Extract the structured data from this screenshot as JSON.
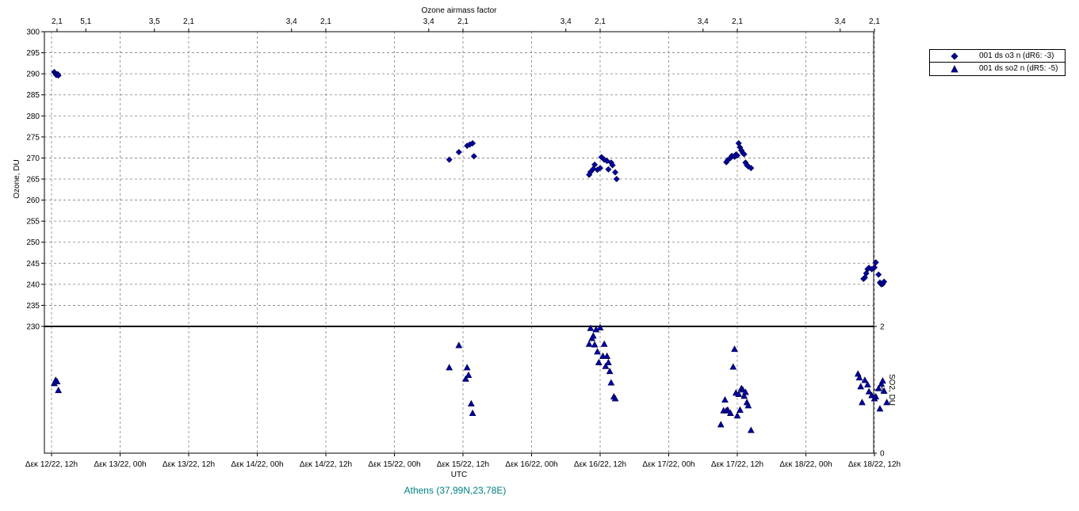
{
  "chart_data": {
    "type": "scatter",
    "top_axis_title": "Ozone airmass factor",
    "top_tick_labels": [
      {
        "x": 0.04,
        "label": "2,1"
      },
      {
        "x": 0.25,
        "label": "5,1"
      },
      {
        "x": 0.75,
        "label": "3,5"
      },
      {
        "x": 1.0,
        "label": "2,1"
      },
      {
        "x": 1.75,
        "label": "3,4"
      },
      {
        "x": 2.0,
        "label": "2,1"
      },
      {
        "x": 2.75,
        "label": "3,4"
      },
      {
        "x": 3.0,
        "label": "2,1"
      },
      {
        "x": 3.75,
        "label": "3,4"
      },
      {
        "x": 4.0,
        "label": "2,1"
      },
      {
        "x": 4.75,
        "label": "3,4"
      },
      {
        "x": 5.0,
        "label": "2,1"
      },
      {
        "x": 5.75,
        "label": "3,4"
      },
      {
        "x": 6.0,
        "label": "2,1"
      }
    ],
    "xlabel": "UTC",
    "x_tick_labels": [
      {
        "x": 0.0,
        "label": "Δεκ 12/22, 12h"
      },
      {
        "x": 0.5,
        "label": "Δεκ 13/22, 00h"
      },
      {
        "x": 1.0,
        "label": "Δεκ 13/22, 12h"
      },
      {
        "x": 1.5,
        "label": "Δεκ 14/22, 00h"
      },
      {
        "x": 2.0,
        "label": "Δεκ 14/22, 12h"
      },
      {
        "x": 2.5,
        "label": "Δεκ 15/22, 00h"
      },
      {
        "x": 3.0,
        "label": "Δεκ 15/22, 12h"
      },
      {
        "x": 3.5,
        "label": "Δεκ 16/22, 00h"
      },
      {
        "x": 4.0,
        "label": "Δεκ 16/22, 12h"
      },
      {
        "x": 4.5,
        "label": "Δεκ 17/22, 00h"
      },
      {
        "x": 5.0,
        "label": "Δεκ 17/22, 12h"
      },
      {
        "x": 5.5,
        "label": "Δεκ 18/22, 00h"
      },
      {
        "x": 6.0,
        "label": "Δεκ 18/22, 12h"
      }
    ],
    "footer": "Athens (37,99N,23,78E)",
    "grid": true,
    "legend_position": "top-right",
    "upper_panel": {
      "ylabel": "Ozone, DU",
      "ylim": [
        230,
        300
      ],
      "yticks": [
        "300",
        "295",
        "290",
        "285",
        "280",
        "275",
        "270",
        "265",
        "260",
        "255",
        "250",
        "245",
        "240",
        "235",
        "230"
      ]
    },
    "lower_panel": {
      "ylabel": "SO2, DU",
      "ylim": [
        0,
        2
      ],
      "yticks": [
        "2",
        "1",
        "0"
      ]
    },
    "series": [
      {
        "name": "001 ds o3  n (dR6: -3)",
        "marker": "diamond",
        "color": "#000080",
        "panel": "upper",
        "points": [
          [
            0.02,
            290.4
          ],
          [
            0.03,
            290.0
          ],
          [
            0.035,
            289.7
          ],
          [
            0.045,
            289.9
          ],
          [
            0.05,
            289.6
          ],
          [
            2.9,
            269.6
          ],
          [
            2.97,
            271.4
          ],
          [
            3.03,
            272.9
          ],
          [
            3.05,
            273.2
          ],
          [
            3.07,
            273.5
          ],
          [
            3.08,
            270.4
          ],
          [
            3.92,
            266.0
          ],
          [
            3.93,
            266.7
          ],
          [
            3.95,
            267.4
          ],
          [
            3.96,
            268.4
          ],
          [
            3.98,
            267.2
          ],
          [
            4.0,
            267.6
          ],
          [
            4.01,
            270.2
          ],
          [
            4.03,
            269.6
          ],
          [
            4.05,
            269.3
          ],
          [
            4.06,
            267.3
          ],
          [
            4.08,
            268.9
          ],
          [
            4.09,
            268.3
          ],
          [
            4.11,
            266.6
          ],
          [
            4.12,
            265.0
          ],
          [
            4.92,
            269.0
          ],
          [
            4.93,
            269.5
          ],
          [
            4.95,
            270.0
          ],
          [
            4.96,
            270.5
          ],
          [
            4.98,
            270.3
          ],
          [
            4.99,
            270.8
          ],
          [
            5.0,
            270.6
          ],
          [
            5.01,
            273.5
          ],
          [
            5.02,
            272.5
          ],
          [
            5.03,
            271.8
          ],
          [
            5.04,
            271.2
          ],
          [
            5.05,
            270.9
          ],
          [
            5.06,
            268.9
          ],
          [
            5.07,
            268.3
          ],
          [
            5.08,
            268.0
          ],
          [
            5.1,
            267.6
          ],
          [
            5.92,
            241.3
          ],
          [
            5.93,
            241.6
          ],
          [
            5.94,
            242.6
          ],
          [
            5.95,
            243.6
          ],
          [
            5.96,
            243.9
          ],
          [
            5.98,
            243.6
          ],
          [
            6.0,
            244.0
          ],
          [
            6.01,
            245.2
          ],
          [
            6.03,
            242.3
          ],
          [
            6.04,
            240.4
          ],
          [
            6.05,
            240.0
          ],
          [
            6.06,
            240.1
          ],
          [
            6.07,
            240.6
          ]
        ]
      },
      {
        "name": "001 ds so2 n (dR5: -5)",
        "marker": "triangle",
        "color": "#000080",
        "panel": "lower",
        "points": [
          [
            0.02,
            1.1
          ],
          [
            0.03,
            1.15
          ],
          [
            0.04,
            1.13
          ],
          [
            0.05,
            0.99
          ],
          [
            2.9,
            1.35
          ],
          [
            2.97,
            1.7
          ],
          [
            3.02,
            1.17
          ],
          [
            3.03,
            1.35
          ],
          [
            3.04,
            1.23
          ],
          [
            3.06,
            0.78
          ],
          [
            3.07,
            0.63
          ],
          [
            3.92,
            1.72
          ],
          [
            3.93,
            1.97
          ],
          [
            3.94,
            1.81
          ],
          [
            3.95,
            1.85
          ],
          [
            3.96,
            1.71
          ],
          [
            3.97,
            1.95
          ],
          [
            3.98,
            1.6
          ],
          [
            3.99,
            1.43
          ],
          [
            4.0,
            1.98
          ],
          [
            4.02,
            1.53
          ],
          [
            4.03,
            1.72
          ],
          [
            4.04,
            1.37
          ],
          [
            4.05,
            1.53
          ],
          [
            4.06,
            1.43
          ],
          [
            4.07,
            1.29
          ],
          [
            4.08,
            1.11
          ],
          [
            4.1,
            0.89
          ],
          [
            4.11,
            0.86
          ],
          [
            4.88,
            0.45
          ],
          [
            4.9,
            0.67
          ],
          [
            4.91,
            0.84
          ],
          [
            4.92,
            0.67
          ],
          [
            4.93,
            0.68
          ],
          [
            4.95,
            0.63
          ],
          [
            4.97,
            1.36
          ],
          [
            4.98,
            1.64
          ],
          [
            4.99,
            0.95
          ],
          [
            5.0,
            0.59
          ],
          [
            5.01,
            0.93
          ],
          [
            5.02,
            0.68
          ],
          [
            5.03,
            1.02
          ],
          [
            5.04,
            1.0
          ],
          [
            5.05,
            0.9
          ],
          [
            5.06,
            0.96
          ],
          [
            5.07,
            0.8
          ],
          [
            5.08,
            0.75
          ],
          [
            5.1,
            0.36
          ],
          [
            5.88,
            1.25
          ],
          [
            5.89,
            1.19
          ],
          [
            5.9,
            1.05
          ],
          [
            5.91,
            0.8
          ],
          [
            5.93,
            1.15
          ],
          [
            5.95,
            1.08
          ],
          [
            5.96,
            0.97
          ],
          [
            5.98,
            0.91
          ],
          [
            6.0,
            0.86
          ],
          [
            6.01,
            0.89
          ],
          [
            6.03,
            1.02
          ],
          [
            6.04,
            0.7
          ],
          [
            6.05,
            1.09
          ],
          [
            6.06,
            1.14
          ],
          [
            6.07,
            0.98
          ],
          [
            6.09,
            0.8
          ]
        ]
      }
    ]
  }
}
